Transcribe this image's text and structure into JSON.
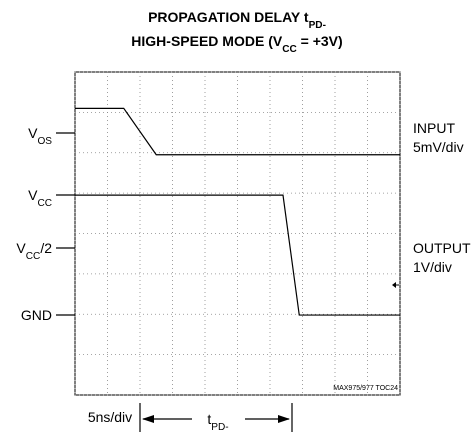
{
  "chart_data": {
    "type": "line",
    "title": [
      [
        {
          "text": "PROPAGATION DELAY t"
        },
        {
          "text": "PD-",
          "sub": true
        }
      ],
      [
        {
          "text": "HIGH-SPEED MODE (V"
        },
        {
          "text": "CC",
          "sub": true
        },
        {
          "text": " = +3V)"
        }
      ]
    ],
    "level_labels": [
      [
        {
          "text": "V"
        },
        {
          "text": "OS",
          "sub": true
        }
      ],
      [
        {
          "text": "V"
        },
        {
          "text": "CC",
          "sub": true
        }
      ],
      [
        {
          "text": "V"
        },
        {
          "text": "CC",
          "sub": true
        },
        {
          "text": "/2"
        }
      ],
      [
        {
          "text": "GND"
        }
      ]
    ],
    "x": [
      0,
      1.5,
      2.5,
      6.4,
      6.9,
      10
    ],
    "series": [
      {
        "name": "INPUT",
        "scale": "5mV/div",
        "color": "#000000",
        "values": [
          7.1,
          7.1,
          5.95,
          5.95,
          5.95,
          5.95
        ]
      },
      {
        "name": "OUTPUT",
        "scale": "1V/div",
        "color": "#000000",
        "values": [
          4.95,
          4.95,
          4.95,
          4.95,
          1.98,
          1.98
        ]
      }
    ],
    "xlim": [
      0,
      10
    ],
    "ylim": [
      0,
      8
    ],
    "xticks": [
      0,
      1,
      2,
      3,
      4,
      5,
      6,
      7,
      8,
      9,
      10
    ],
    "yticks": [
      0,
      1,
      2,
      3,
      4,
      5,
      6,
      7,
      8
    ],
    "grid": true,
    "time_scale": "5ns/div",
    "interval_label": [
      {
        "text": "t"
      },
      {
        "text": "PD-",
        "sub": true
      }
    ],
    "note": "MAX975/977 TOC24"
  }
}
